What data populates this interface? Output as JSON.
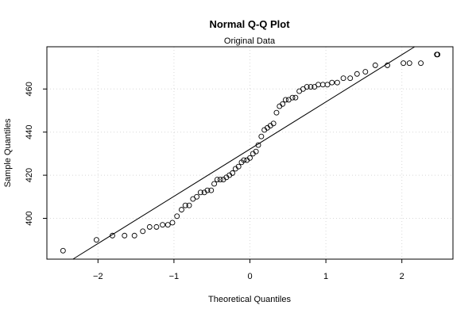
{
  "chart_data": {
    "type": "scatter",
    "title": "Normal Q-Q Plot",
    "subtitle": "Original Data",
    "xlabel": "Theoretical Quantiles",
    "ylabel": "Sample Quantiles",
    "xlim": [
      -2.6,
      2.6
    ],
    "ylim": [
      380,
      480
    ],
    "xticks": [
      -2,
      -1,
      0,
      1,
      2
    ],
    "yticks": [
      400,
      420,
      440,
      460
    ],
    "grid": true,
    "reference_line": {
      "slope": 21.9,
      "intercept": 432.1
    },
    "points": [
      {
        "x": -2.46,
        "y": 385
      },
      {
        "x": -2.02,
        "y": 390
      },
      {
        "x": -1.81,
        "y": 392
      },
      {
        "x": -1.65,
        "y": 392
      },
      {
        "x": -1.52,
        "y": 392
      },
      {
        "x": -1.41,
        "y": 394
      },
      {
        "x": -1.32,
        "y": 396
      },
      {
        "x": -1.23,
        "y": 396
      },
      {
        "x": -1.15,
        "y": 397
      },
      {
        "x": -1.08,
        "y": 397
      },
      {
        "x": -1.02,
        "y": 398
      },
      {
        "x": -0.96,
        "y": 401
      },
      {
        "x": -0.9,
        "y": 404
      },
      {
        "x": -0.85,
        "y": 406
      },
      {
        "x": -0.8,
        "y": 406
      },
      {
        "x": -0.75,
        "y": 409
      },
      {
        "x": -0.7,
        "y": 410
      },
      {
        "x": -0.65,
        "y": 412
      },
      {
        "x": -0.6,
        "y": 412
      },
      {
        "x": -0.56,
        "y": 413
      },
      {
        "x": -0.51,
        "y": 413
      },
      {
        "x": -0.47,
        "y": 416
      },
      {
        "x": -0.43,
        "y": 418
      },
      {
        "x": -0.39,
        "y": 418
      },
      {
        "x": -0.35,
        "y": 418
      },
      {
        "x": -0.31,
        "y": 419
      },
      {
        "x": -0.27,
        "y": 420
      },
      {
        "x": -0.23,
        "y": 421
      },
      {
        "x": -0.19,
        "y": 423
      },
      {
        "x": -0.15,
        "y": 424
      },
      {
        "x": -0.11,
        "y": 426
      },
      {
        "x": -0.08,
        "y": 427
      },
      {
        "x": -0.04,
        "y": 427
      },
      {
        "x": 0.0,
        "y": 428
      },
      {
        "x": 0.04,
        "y": 430
      },
      {
        "x": 0.08,
        "y": 431
      },
      {
        "x": 0.11,
        "y": 434
      },
      {
        "x": 0.15,
        "y": 438
      },
      {
        "x": 0.19,
        "y": 441
      },
      {
        "x": 0.23,
        "y": 442
      },
      {
        "x": 0.27,
        "y": 443
      },
      {
        "x": 0.31,
        "y": 444
      },
      {
        "x": 0.35,
        "y": 449
      },
      {
        "x": 0.39,
        "y": 452
      },
      {
        "x": 0.43,
        "y": 453
      },
      {
        "x": 0.47,
        "y": 455
      },
      {
        "x": 0.51,
        "y": 455
      },
      {
        "x": 0.56,
        "y": 456
      },
      {
        "x": 0.6,
        "y": 456
      },
      {
        "x": 0.65,
        "y": 459
      },
      {
        "x": 0.7,
        "y": 460
      },
      {
        "x": 0.75,
        "y": 461
      },
      {
        "x": 0.8,
        "y": 461
      },
      {
        "x": 0.85,
        "y": 461
      },
      {
        "x": 0.9,
        "y": 462
      },
      {
        "x": 0.96,
        "y": 462
      },
      {
        "x": 1.02,
        "y": 462
      },
      {
        "x": 1.08,
        "y": 463
      },
      {
        "x": 1.15,
        "y": 463
      },
      {
        "x": 1.23,
        "y": 465
      },
      {
        "x": 1.32,
        "y": 465
      },
      {
        "x": 1.41,
        "y": 467
      },
      {
        "x": 1.52,
        "y": 468
      },
      {
        "x": 1.65,
        "y": 471
      },
      {
        "x": 1.81,
        "y": 471
      },
      {
        "x": 2.02,
        "y": 472
      },
      {
        "x": 2.1,
        "y": 472
      },
      {
        "x": 2.25,
        "y": 472
      },
      {
        "x": 2.46,
        "y": 476
      },
      {
        "x": 2.47,
        "y": 476
      }
    ]
  }
}
